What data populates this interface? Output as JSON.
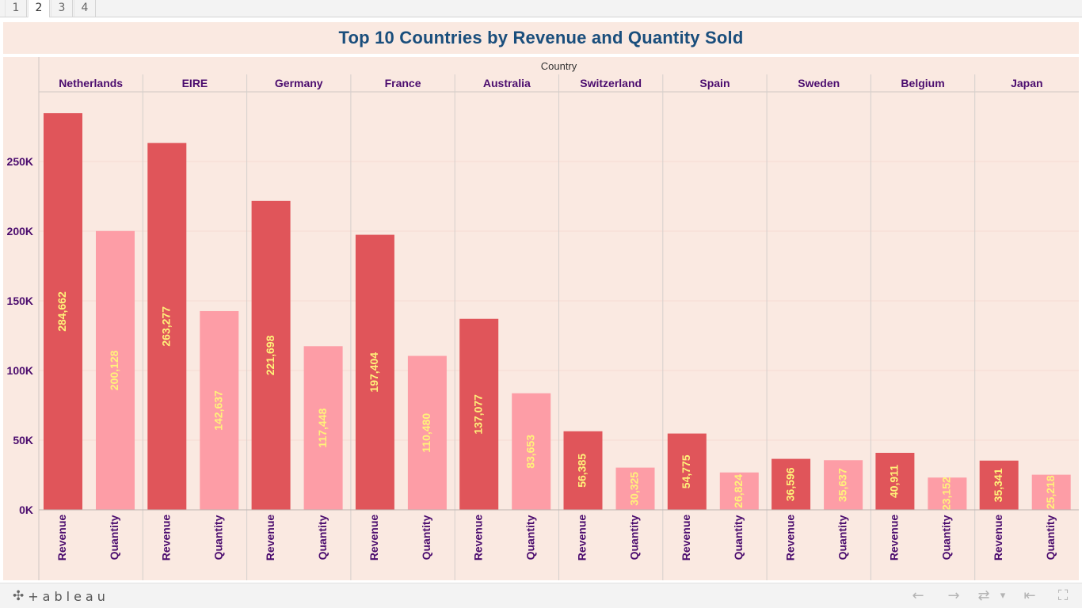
{
  "tabs": [
    "1",
    "2",
    "3",
    "4"
  ],
  "active_tab": 1,
  "title": "Top 10 Countries by Revenue and Quantity Sold",
  "toolbar": {
    "logo_mark": "✣",
    "logo_text": "+ableau",
    "back_icon": "←",
    "forward_icon": "→",
    "revert_icon": "⇄",
    "dropdown_icon": "▾",
    "reset_icon": "⇤",
    "fullscreen_icon": "⛶"
  },
  "colors": {
    "revenue": "#e0555a",
    "quantity": "#fd9da6",
    "label": "#fff27a",
    "axis_text": "#4b0c6e",
    "title": "#1a4e7c",
    "panel_bg": "#fae9e1"
  },
  "chart_data": {
    "type": "bar",
    "title": "Top 10 Countries by Revenue and Quantity Sold",
    "column_header": "Country",
    "categories": [
      "Netherlands",
      "EIRE",
      "Germany",
      "France",
      "Australia",
      "Switzerland",
      "Spain",
      "Sweden",
      "Belgium",
      "Japan"
    ],
    "series": [
      {
        "name": "Revenue",
        "values": [
          284662,
          263277,
          221698,
          197404,
          137077,
          56385,
          54775,
          36596,
          40911,
          35341
        ]
      },
      {
        "name": "Quantity",
        "values": [
          200128,
          142637,
          117448,
          110480,
          83653,
          30325,
          26824,
          35637,
          23152,
          25218
        ]
      }
    ],
    "value_labels": {
      "Revenue": [
        "284,662",
        "263,277",
        "221,698",
        "197,404",
        "137,077",
        "56,385",
        "54,775",
        "36,596",
        "40,911",
        "35,341"
      ],
      "Quantity": [
        "200,128",
        "142,637",
        "117,448",
        "110,480",
        "83,653",
        "30,325",
        "26,824",
        "35,637",
        "23,152",
        "25,218"
      ]
    },
    "y_ticks": [
      0,
      50000,
      100000,
      150000,
      200000,
      250000
    ],
    "y_tick_labels": [
      "0K",
      "50K",
      "100K",
      "150K",
      "200K",
      "250K"
    ],
    "ylim": [
      0,
      300000
    ],
    "grid": true,
    "labels_vertical": true
  }
}
